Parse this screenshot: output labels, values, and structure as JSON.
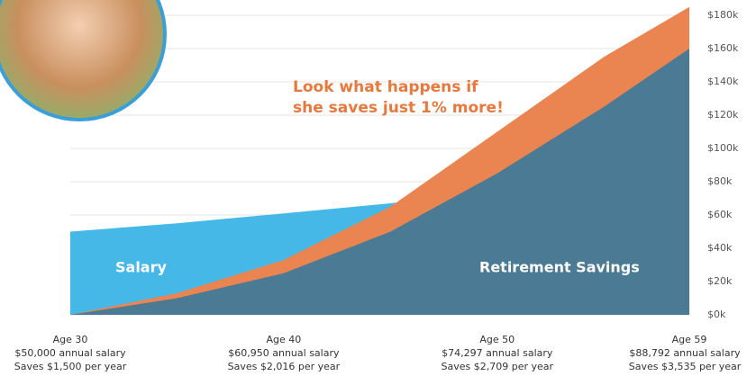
{
  "chart_data": {
    "type": "area",
    "x": [
      30,
      35,
      40,
      45,
      50,
      55,
      59
    ],
    "xlim": [
      30,
      59
    ],
    "ylim": [
      0,
      190
    ],
    "yticks": [
      {
        "value": 0,
        "label": "$0k"
      },
      {
        "value": 20,
        "label": "$20k"
      },
      {
        "value": 40,
        "label": "$40k"
      },
      {
        "value": 60,
        "label": "$60k"
      },
      {
        "value": 80,
        "label": "$80k"
      },
      {
        "value": 100,
        "label": "$100k"
      },
      {
        "value": 120,
        "label": "$120k"
      },
      {
        "value": 140,
        "label": "$140k"
      },
      {
        "value": 160,
        "label": "$160k"
      },
      {
        "value": 180,
        "label": "$180k"
      }
    ],
    "grid": true,
    "series": [
      {
        "name": "Salary",
        "color": "#45b8e8",
        "values": [
          50,
          55,
          60.95,
          67,
          74.3,
          81,
          88.8
        ]
      },
      {
        "color": "#ea8450",
        "values": [
          0,
          13,
          33,
          65,
          110,
          155,
          185
        ]
      },
      {
        "name": "Retirement Savings",
        "color": "#1c77a8",
        "values": [
          0,
          10,
          25,
          50,
          85,
          125,
          160
        ]
      }
    ],
    "annotation": [
      "Look what happens if",
      "she saves just 1% more!"
    ],
    "age_labels": [
      {
        "age_value": 30,
        "age": "Age 30",
        "salary": "$50,000 annual salary",
        "saves": "Saves $1,500 per year"
      },
      {
        "age_value": 40,
        "age": "Age 40",
        "salary": "$60,950 annual salary",
        "saves": "Saves $2,016 per year"
      },
      {
        "age_value": 50,
        "age": "Age 50",
        "salary": "$74,297 annual salary",
        "saves": "Saves $2,709 per year"
      },
      {
        "age_value": 59,
        "age": "Age 59",
        "salary": "$88,792 annual salary",
        "saves": "Saves $3,535 per year"
      }
    ]
  }
}
